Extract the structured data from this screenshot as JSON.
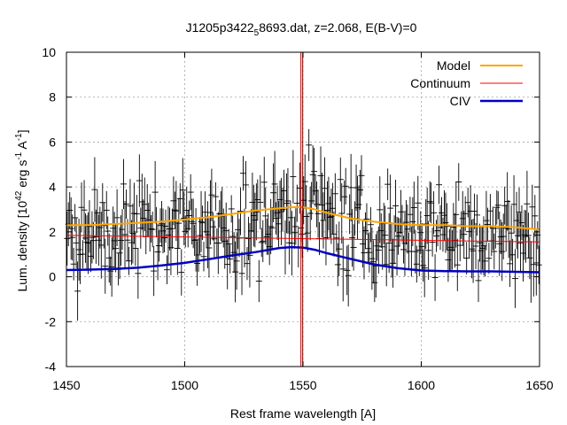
{
  "chart_data": {
    "type": "line",
    "title_main": "J1205p3422",
    "title_sub": "5",
    "title_rest": "8693.dat, z=2.068, E(B-V)=0",
    "xlabel": "Rest frame wavelength [A]",
    "ylabel_pre": "Lum. density [10",
    "ylabel_exp1": "42",
    "ylabel_mid": " erg s",
    "ylabel_exp2": "-1",
    "ylabel_mid2": " A",
    "ylabel_exp3": "-1",
    "ylabel_post": "]",
    "xlim": [
      1450,
      1650
    ],
    "ylim": [
      -4,
      10
    ],
    "x_ticks": [
      "1450",
      "1500",
      "1550",
      "1600",
      "1650"
    ],
    "y_ticks": [
      "-4",
      "-2",
      "0",
      "2",
      "4",
      "6",
      "8",
      "10"
    ],
    "grid": true,
    "legend_position": "top-right",
    "marker_line_x": 1549.5,
    "series": [
      {
        "name": "Model",
        "color": "#ffa500",
        "x": [
          1450,
          1460,
          1470,
          1480,
          1490,
          1500,
          1510,
          1520,
          1530,
          1540,
          1545,
          1550,
          1555,
          1560,
          1570,
          1580,
          1590,
          1600,
          1610,
          1620,
          1630,
          1640,
          1650
        ],
        "y": [
          2.3,
          2.3,
          2.35,
          2.4,
          2.45,
          2.55,
          2.65,
          2.8,
          2.95,
          3.05,
          3.1,
          3.1,
          3.0,
          2.85,
          2.6,
          2.45,
          2.35,
          2.3,
          2.3,
          2.25,
          2.25,
          2.2,
          2.1
        ]
      },
      {
        "name": "Continuum",
        "color": "#ff0000",
        "x": [
          1450,
          1650
        ],
        "y": [
          1.85,
          1.55
        ]
      },
      {
        "name": "CIV",
        "color": "#0000c0",
        "x": [
          1450,
          1460,
          1470,
          1480,
          1490,
          1500,
          1510,
          1520,
          1530,
          1540,
          1545,
          1550,
          1555,
          1560,
          1570,
          1580,
          1590,
          1600,
          1610,
          1620,
          1630,
          1640,
          1650
        ],
        "y": [
          0.3,
          0.32,
          0.35,
          0.4,
          0.5,
          0.62,
          0.78,
          0.95,
          1.1,
          1.28,
          1.32,
          1.3,
          1.2,
          1.05,
          0.8,
          0.55,
          0.38,
          0.28,
          0.25,
          0.24,
          0.24,
          0.22,
          0.2
        ]
      }
    ],
    "data_points": {
      "name": "",
      "color": "#000000",
      "x_start": 1450,
      "x_end": 1650,
      "count": 360,
      "baseline_level": 2.0,
      "line_center": 1549.5,
      "line_peak": 1.3,
      "line_width": 14,
      "scatter_amplitude": 1.8,
      "error_amplitude": 1.0
    }
  }
}
